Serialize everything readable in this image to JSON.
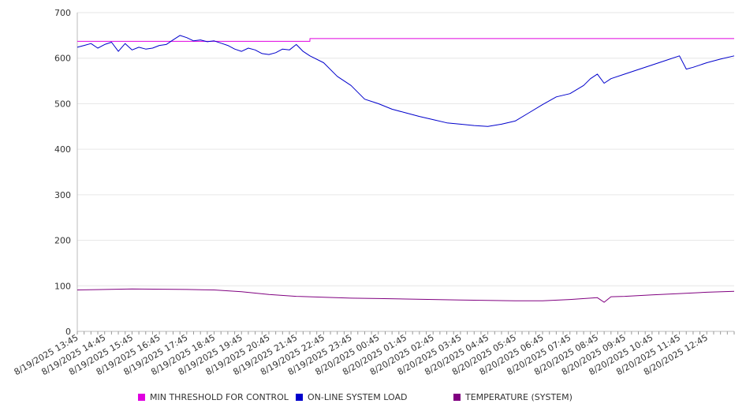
{
  "chart_data": {
    "type": "line",
    "title": "",
    "xlabel": "",
    "ylabel": "",
    "ylim": [
      0,
      700
    ],
    "yticks": [
      0,
      100,
      200,
      300,
      400,
      500,
      600,
      700
    ],
    "x_tick_labels": [
      "8/19/2025 13:45",
      "8/19/2025 14:45",
      "8/19/2025 15:45",
      "8/19/2025 16:45",
      "8/19/2025 17:45",
      "8/19/2025 18:45",
      "8/19/2025 19:45",
      "8/19/2025 20:45",
      "8/19/2025 21:45",
      "8/19/2025 22:45",
      "8/19/2025 23:45",
      "8/20/2025 00:45",
      "8/20/2025 01:45",
      "8/20/2025 02:45",
      "8/20/2025 03:45",
      "8/20/2025 04:45",
      "8/20/2025 05:45",
      "8/20/2025 06:45",
      "8/20/2025 07:45",
      "8/20/2025 08:45",
      "8/20/2025 09:45",
      "8/20/2025 10:45",
      "8/20/2025 11:45",
      "8/20/2025 12:45"
    ],
    "x_range": [
      "8/19/2025 13:45",
      "8/20/2025 13:45"
    ],
    "grid": "horizontal",
    "legend_position": "bottom",
    "series": [
      {
        "name": "MIN THRESHOLD FOR CONTROL",
        "color": "#e000e0",
        "x": [
          "8/19/2025 13:45",
          "8/19/2025 22:15",
          "8/19/2025 22:15",
          "8/20/2025 13:45"
        ],
        "y": [
          637,
          637,
          643,
          643
        ]
      },
      {
        "name": "ON-LINE SYSTEM LOAD",
        "color": "#0000cc",
        "x": [
          "8/19/2025 13:45",
          "8/19/2025 14:00",
          "8/19/2025 14:15",
          "8/19/2025 14:30",
          "8/19/2025 14:45",
          "8/19/2025 15:00",
          "8/19/2025 15:15",
          "8/19/2025 15:30",
          "8/19/2025 15:45",
          "8/19/2025 16:00",
          "8/19/2025 16:15",
          "8/19/2025 16:30",
          "8/19/2025 16:45",
          "8/19/2025 17:00",
          "8/19/2025 17:15",
          "8/19/2025 17:30",
          "8/19/2025 17:45",
          "8/19/2025 18:00",
          "8/19/2025 18:15",
          "8/19/2025 18:30",
          "8/19/2025 18:45",
          "8/19/2025 19:00",
          "8/19/2025 19:15",
          "8/19/2025 19:30",
          "8/19/2025 19:45",
          "8/19/2025 20:00",
          "8/19/2025 20:15",
          "8/19/2025 20:30",
          "8/19/2025 20:45",
          "8/19/2025 21:00",
          "8/19/2025 21:15",
          "8/19/2025 21:30",
          "8/19/2025 21:45",
          "8/19/2025 22:00",
          "8/19/2025 22:15",
          "8/19/2025 22:45",
          "8/19/2025 23:15",
          "8/19/2025 23:45",
          "8/20/2025 00:15",
          "8/20/2025 00:45",
          "8/20/2025 01:15",
          "8/20/2025 01:45",
          "8/20/2025 02:15",
          "8/20/2025 02:45",
          "8/20/2025 03:15",
          "8/20/2025 03:45",
          "8/20/2025 04:15",
          "8/20/2025 04:45",
          "8/20/2025 05:15",
          "8/20/2025 05:45",
          "8/20/2025 06:15",
          "8/20/2025 06:45",
          "8/20/2025 07:15",
          "8/20/2025 07:45",
          "8/20/2025 08:15",
          "8/20/2025 08:30",
          "8/20/2025 08:45",
          "8/20/2025 09:00",
          "8/20/2025 09:15",
          "8/20/2025 09:45",
          "8/20/2025 10:15",
          "8/20/2025 10:45",
          "8/20/2025 11:15",
          "8/20/2025 11:45",
          "8/20/2025 12:00",
          "8/20/2025 12:15",
          "8/20/2025 12:45",
          "8/20/2025 13:15",
          "8/20/2025 13:45"
        ],
        "y": [
          624,
          628,
          632,
          622,
          630,
          635,
          615,
          632,
          618,
          624,
          620,
          622,
          628,
          630,
          640,
          650,
          645,
          638,
          640,
          636,
          638,
          633,
          628,
          620,
          615,
          622,
          618,
          610,
          608,
          612,
          620,
          618,
          630,
          615,
          605,
          590,
          560,
          540,
          510,
          500,
          488,
          480,
          472,
          465,
          458,
          455,
          452,
          450,
          455,
          462,
          480,
          498,
          515,
          522,
          540,
          555,
          565,
          545,
          555,
          565,
          575,
          585,
          595,
          605,
          576,
          580,
          590,
          598,
          605
        ]
      },
      {
        "name": "TEMPERATURE (SYSTEM)",
        "color": "#800080",
        "x": [
          "8/19/2025 13:45",
          "8/19/2025 15:45",
          "8/19/2025 17:45",
          "8/19/2025 18:45",
          "8/19/2025 19:45",
          "8/19/2025 20:45",
          "8/19/2025 21:45",
          "8/19/2025 22:45",
          "8/19/2025 23:45",
          "8/20/2025 00:45",
          "8/20/2025 01:45",
          "8/20/2025 02:45",
          "8/20/2025 03:45",
          "8/20/2025 04:45",
          "8/20/2025 05:45",
          "8/20/2025 06:45",
          "8/20/2025 07:45",
          "8/20/2025 08:45",
          "8/20/2025 09:00",
          "8/20/2025 09:15",
          "8/20/2025 09:45",
          "8/20/2025 10:45",
          "8/20/2025 11:45",
          "8/20/2025 12:45",
          "8/20/2025 13:45"
        ],
        "y": [
          91,
          93,
          92,
          91,
          87,
          81,
          77,
          75,
          73,
          72,
          71,
          70,
          69,
          68,
          67,
          67,
          70,
          74,
          64,
          76,
          77,
          80,
          83,
          86,
          88
        ]
      }
    ]
  }
}
